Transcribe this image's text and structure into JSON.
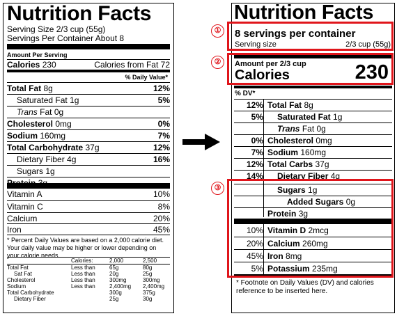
{
  "old_label": {
    "title": "Nutrition Facts",
    "serving_size": "Serving Size 2/3 cup (55g)",
    "servings_per_container": "Servings Per Container About 8",
    "amount_per_serving": "Amount Per Serving",
    "calories_label": "Calories",
    "calories_value": "230",
    "calories_from_fat": "Calories from Fat 72",
    "dv_header": "% Daily Value*",
    "nutrients": [
      {
        "name": "Total Fat",
        "amount": "8g",
        "dv": "12%"
      },
      {
        "name": "Saturated Fat",
        "amount": "1g",
        "dv": "5%"
      },
      {
        "name": "Trans",
        "amount": "Fat 0g",
        "dv": ""
      },
      {
        "name": "Cholesterol",
        "amount": "0mg",
        "dv": "0%"
      },
      {
        "name": "Sodium",
        "amount": "160mg",
        "dv": "7%"
      },
      {
        "name": "Total Carbohydrate",
        "amount": "37g",
        "dv": "12%"
      },
      {
        "name": "Dietary Fiber",
        "amount": "4g",
        "dv": "16%"
      },
      {
        "name": "Sugars",
        "amount": "1g",
        "dv": ""
      },
      {
        "name": "Protein",
        "amount": "3g",
        "dv": ""
      }
    ],
    "vitamins": [
      {
        "name": "Vitamin A",
        "dv": "10%"
      },
      {
        "name": "Vitamin C",
        "dv": "8%"
      },
      {
        "name": "Calcium",
        "dv": "20%"
      },
      {
        "name": "Iron",
        "dv": "45%"
      }
    ],
    "footnote": "* Percent Daily Values are based on a 2,000 calorie diet. Your daily value may be higher or lower depending on your calorie needs.",
    "table": {
      "header": [
        "",
        "Calories:",
        "2,000",
        "2,500"
      ],
      "rows": [
        [
          "Total Fat",
          "Less than",
          "65g",
          "80g"
        ],
        [
          "Sat Fat",
          "Less than",
          "20g",
          "25g"
        ],
        [
          "Cholesterol",
          "Less than",
          "300mg",
          "300mg"
        ],
        [
          "Sodium",
          "Less than",
          "2,400mg",
          "2,400mg"
        ],
        [
          "Total Carbohydrate",
          "",
          "300g",
          "375g"
        ],
        [
          "Dietary Fiber",
          "",
          "25g",
          "30g"
        ]
      ]
    }
  },
  "new_label": {
    "title": "Nutrition Facts",
    "servings": "8 servings per container",
    "serving_size_label": "Serving size",
    "serving_size_value": "2/3 cup (55g)",
    "amount_per": "Amount per 2/3 cup",
    "calories_label": "Calories",
    "calories_value": "230",
    "dv_header": "% DV*",
    "nutrients": [
      {
        "dv": "12%",
        "name": "Total Fat",
        "amount": "8g"
      },
      {
        "dv": "5%",
        "name": "Saturated Fat",
        "amount": "1g"
      },
      {
        "dv": "",
        "name": "Trans",
        "amount": "Fat 0g"
      },
      {
        "dv": "0%",
        "name": "Cholesterol",
        "amount": "0mg"
      },
      {
        "dv": "7%",
        "name": "Sodium",
        "amount": "160mg"
      },
      {
        "dv": "12%",
        "name": "Total Carbs",
        "amount": "37g"
      },
      {
        "dv": "14%",
        "name": "Dietary Fiber",
        "amount": "4g"
      },
      {
        "dv": "",
        "name": "Sugars",
        "amount": "1g"
      },
      {
        "dv": "",
        "name": "Added Sugars",
        "amount": "0g"
      },
      {
        "dv": "",
        "name": "Protein",
        "amount": "3g"
      }
    ],
    "minerals": [
      {
        "dv": "10%",
        "name": "Vitamin D",
        "amount": "2mcg"
      },
      {
        "dv": "20%",
        "name": "Calcium",
        "amount": "260mg"
      },
      {
        "dv": "45%",
        "name": "Iron",
        "amount": "8mg"
      },
      {
        "dv": "5%",
        "name": "Potassium",
        "amount": "235mg"
      }
    ],
    "footnote": "* Footnote on Daily Values (DV) and calories reference to be inserted here."
  },
  "callouts": [
    "①",
    "②",
    "③"
  ],
  "accent_color": "#e0151b"
}
